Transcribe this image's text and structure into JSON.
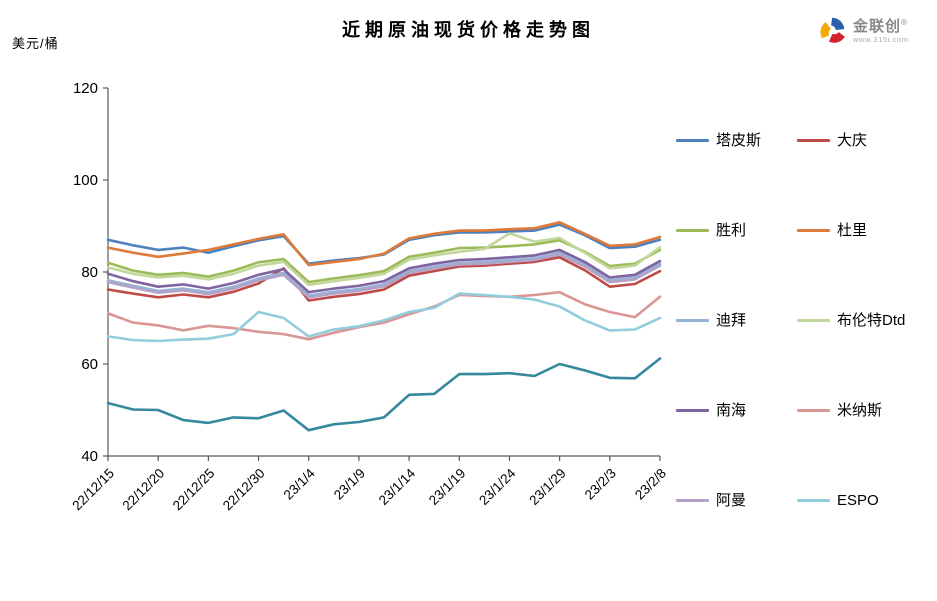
{
  "title": "近期原油现货价格走势图",
  "y_axis_unit": "美元/桶",
  "logo": {
    "name": "金联创",
    "reg_mark": "®",
    "url": "www.315i.com"
  },
  "chart_data": {
    "type": "line",
    "title": "近期原油现货价格走势图",
    "ylabel": "美元/桶",
    "ylim": [
      40,
      120
    ],
    "y_ticks": [
      40,
      60,
      80,
      100,
      120
    ],
    "grid": false,
    "legend_position": "right",
    "x_tick_labels": [
      "22/12/15",
      "22/12/20",
      "22/12/25",
      "22/12/30",
      "23/1/4",
      "23/1/9",
      "23/1/14",
      "23/1/19",
      "23/1/24",
      "23/1/29",
      "23/2/3",
      "23/2/8"
    ],
    "x_sample_dates": [
      "22/12/15",
      "22/12/17",
      "22/12/20",
      "22/12/22",
      "22/12/25",
      "22/12/27",
      "22/12/30",
      "23/1/1",
      "23/1/4",
      "23/1/6",
      "23/1/9",
      "23/1/11",
      "23/1/14",
      "23/1/16",
      "23/1/19",
      "23/1/21",
      "23/1/24",
      "23/1/26",
      "23/1/29",
      "23/1/31",
      "23/2/3",
      "23/2/5",
      "23/2/8"
    ],
    "series": [
      {
        "name": "塔皮斯",
        "color": "#4F81BD",
        "show_in_legend": true,
        "values": [
          87.0,
          85.8,
          84.8,
          85.3,
          84.2,
          85.6,
          86.9,
          87.8,
          81.8,
          82.5,
          83.0,
          83.8,
          87.0,
          88.0,
          88.6,
          88.6,
          88.8,
          89.0,
          90.3,
          88.0,
          85.2,
          85.5,
          87.0
        ]
      },
      {
        "name": "大庆",
        "color": "#BE4B48",
        "show_in_legend": true,
        "values": [
          76.2,
          75.3,
          74.5,
          75.1,
          74.5,
          75.7,
          77.5,
          80.8,
          73.8,
          74.6,
          75.2,
          76.2,
          79.2,
          80.2,
          81.2,
          81.4,
          81.8,
          82.2,
          83.2,
          80.4,
          76.8,
          77.4,
          80.2
        ]
      },
      {
        "name": "胜利",
        "color": "#9BBB59",
        "show_in_legend": true,
        "values": [
          82.0,
          80.3,
          79.4,
          79.8,
          79.0,
          80.3,
          82.1,
          82.8,
          77.8,
          78.6,
          79.3,
          80.2,
          83.3,
          84.2,
          85.2,
          85.3,
          85.6,
          86.0,
          86.9,
          84.4,
          81.3,
          81.8,
          84.8
        ]
      },
      {
        "name": "杜里",
        "color": "#DE7A3A",
        "show_in_legend": true,
        "values": [
          85.3,
          84.2,
          83.3,
          84.0,
          84.8,
          86.0,
          87.2,
          88.2,
          81.5,
          82.2,
          82.8,
          84.0,
          87.3,
          88.3,
          89.0,
          89.0,
          89.3,
          89.5,
          90.8,
          88.3,
          85.7,
          86.0,
          87.6
        ]
      },
      {
        "name": "迪拜",
        "color": "#95B3D7",
        "show_in_legend": true,
        "values": [
          78.2,
          77.0,
          75.9,
          76.4,
          75.6,
          76.8,
          78.6,
          79.8,
          74.9,
          75.7,
          76.3,
          77.3,
          80.2,
          81.2,
          82.0,
          82.2,
          82.6,
          83.0,
          84.2,
          81.6,
          78.2,
          78.8,
          81.8
        ]
      },
      {
        "name": "布伦特Dtd",
        "color": "#C3D69B",
        "show_in_legend": true,
        "values": [
          81.0,
          79.6,
          78.8,
          79.2,
          78.4,
          79.6,
          81.4,
          82.2,
          77.2,
          78.0,
          78.7,
          79.6,
          82.7,
          83.6,
          84.4,
          85.0,
          88.4,
          86.6,
          87.4,
          84.2,
          80.8,
          81.4,
          85.4
        ]
      },
      {
        "name": "南海",
        "color": "#8064A2",
        "show_in_legend": true,
        "values": [
          79.6,
          78.0,
          76.8,
          77.3,
          76.4,
          77.6,
          79.4,
          80.6,
          75.6,
          76.4,
          77.0,
          78.0,
          80.8,
          81.8,
          82.6,
          82.8,
          83.2,
          83.6,
          84.8,
          82.2,
          78.8,
          79.4,
          82.4
        ]
      },
      {
        "name": "米纳斯",
        "color": "#D99694",
        "show_in_legend": true,
        "values": [
          71.0,
          69.0,
          68.4,
          67.3,
          68.3,
          67.8,
          67.0,
          66.5,
          65.4,
          66.8,
          68.0,
          69.0,
          70.8,
          72.5,
          75.0,
          74.8,
          74.6,
          75.0,
          75.6,
          73.0,
          71.3,
          70.2,
          74.6
        ]
      },
      {
        "name": "阿曼",
        "color": "#B3A2C7",
        "show_in_legend": true,
        "values": [
          77.8,
          76.6,
          75.5,
          76.0,
          75.2,
          76.4,
          78.2,
          79.4,
          74.5,
          75.3,
          75.9,
          76.9,
          79.8,
          80.8,
          81.6,
          81.8,
          82.2,
          82.6,
          83.8,
          81.2,
          77.8,
          78.4,
          81.4
        ]
      },
      {
        "name": "ESPO",
        "color": "#92CDDC",
        "show_in_legend": true,
        "values": [
          66.0,
          65.2,
          65.0,
          65.3,
          65.5,
          66.5,
          71.3,
          70.0,
          66.0,
          67.5,
          68.2,
          69.5,
          71.3,
          72.2,
          75.3,
          75.0,
          74.6,
          74.0,
          72.5,
          69.5,
          67.3,
          67.5,
          70.0
        ]
      },
      {
        "name": "",
        "color": "#35889E",
        "show_in_legend": false,
        "values": [
          51.5,
          50.1,
          50.0,
          47.8,
          47.2,
          48.4,
          48.2,
          49.9,
          45.6,
          46.9,
          47.4,
          48.4,
          53.3,
          53.5,
          57.8,
          57.8,
          58.0,
          57.4,
          60.0,
          58.6,
          57.0,
          56.9,
          61.2
        ]
      }
    ]
  }
}
